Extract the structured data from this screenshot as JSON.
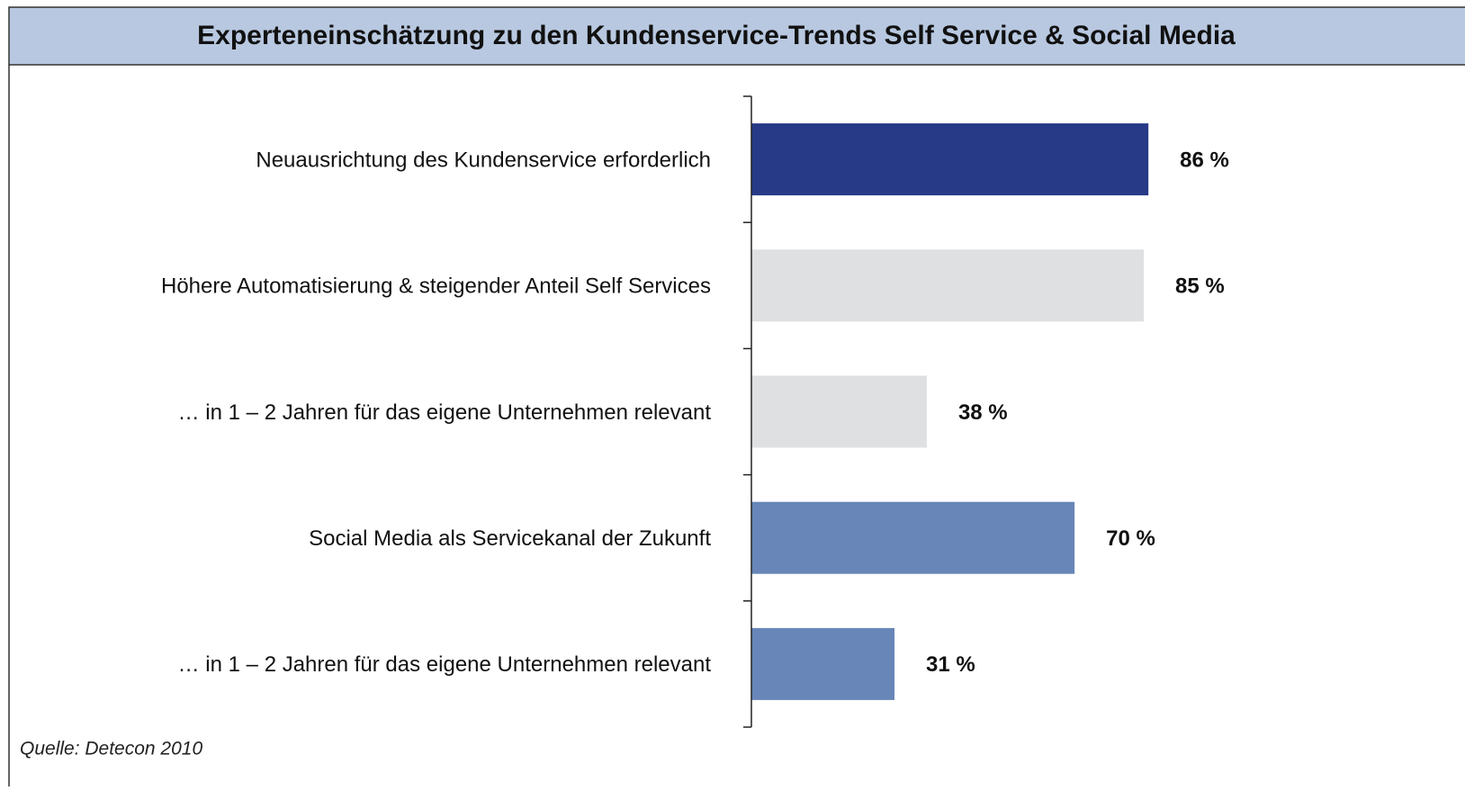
{
  "chart_data": {
    "type": "barh",
    "title": "Experteneinschätzung zu den Kundenservice-Trends Self Service & Social Media",
    "categories": [
      "Neuausrichtung des Kundenservice erforderlich",
      "Höhere Automatisierung & steigender Anteil Self  Services",
      "… in 1 – 2 Jahren für das eigene Unternehmen relevant",
      "Social Media als Servicekanal der Zukunft",
      "… in 1 – 2 Jahren für das eigene Unternehmen relevant"
    ],
    "values": [
      86,
      85,
      38,
      70,
      31
    ],
    "value_labels": [
      "86 %",
      "85 %",
      "38 %",
      "70 %",
      "31 %"
    ],
    "colors": [
      "#263a87",
      "#dfe0e2",
      "#dfe0e2",
      "#6886b8",
      "#6886b8"
    ],
    "xlim": [
      0,
      100
    ],
    "source": "Quelle: Detecon 2010"
  }
}
